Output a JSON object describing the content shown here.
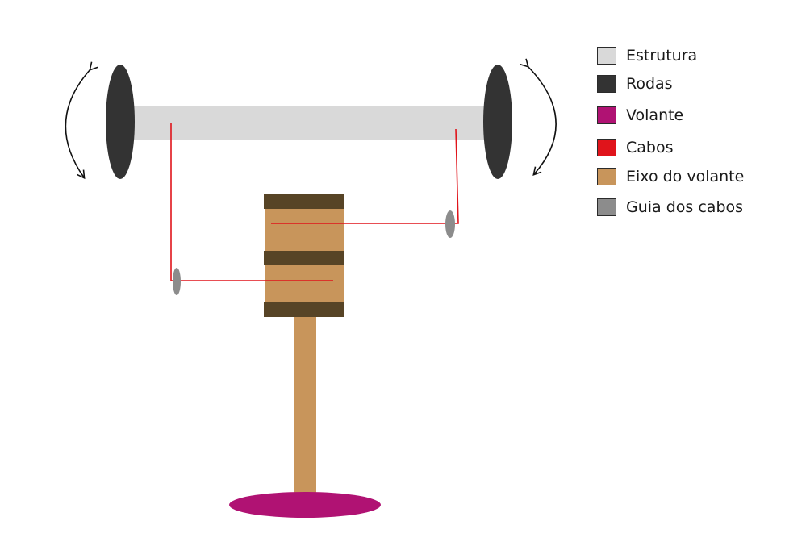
{
  "colors": {
    "structure": "#d9d9d9",
    "wheels": "#333333",
    "steering_wheel": "#b01273",
    "cables": "#e0141b",
    "steering_shaft": "#c8955b",
    "shaft_bands": "#574426",
    "cable_guides": "#8c8c8c",
    "arrows": "#111111"
  },
  "legend": {
    "items": [
      {
        "label": "Estrutura",
        "color": "#d9d9d9"
      },
      {
        "label": "Rodas",
        "color": "#333333"
      },
      {
        "label": "Volante",
        "color": "#b01273"
      },
      {
        "label": "Cabos",
        "color": "#e0141b"
      },
      {
        "label": "Eixo do volante",
        "color": "#c8955b"
      },
      {
        "label": "Guia dos cabos",
        "color": "#8c8c8c"
      }
    ]
  },
  "icons": {
    "left_rotation": "curved-double-arrow-icon",
    "right_rotation": "curved-double-arrow-icon"
  }
}
